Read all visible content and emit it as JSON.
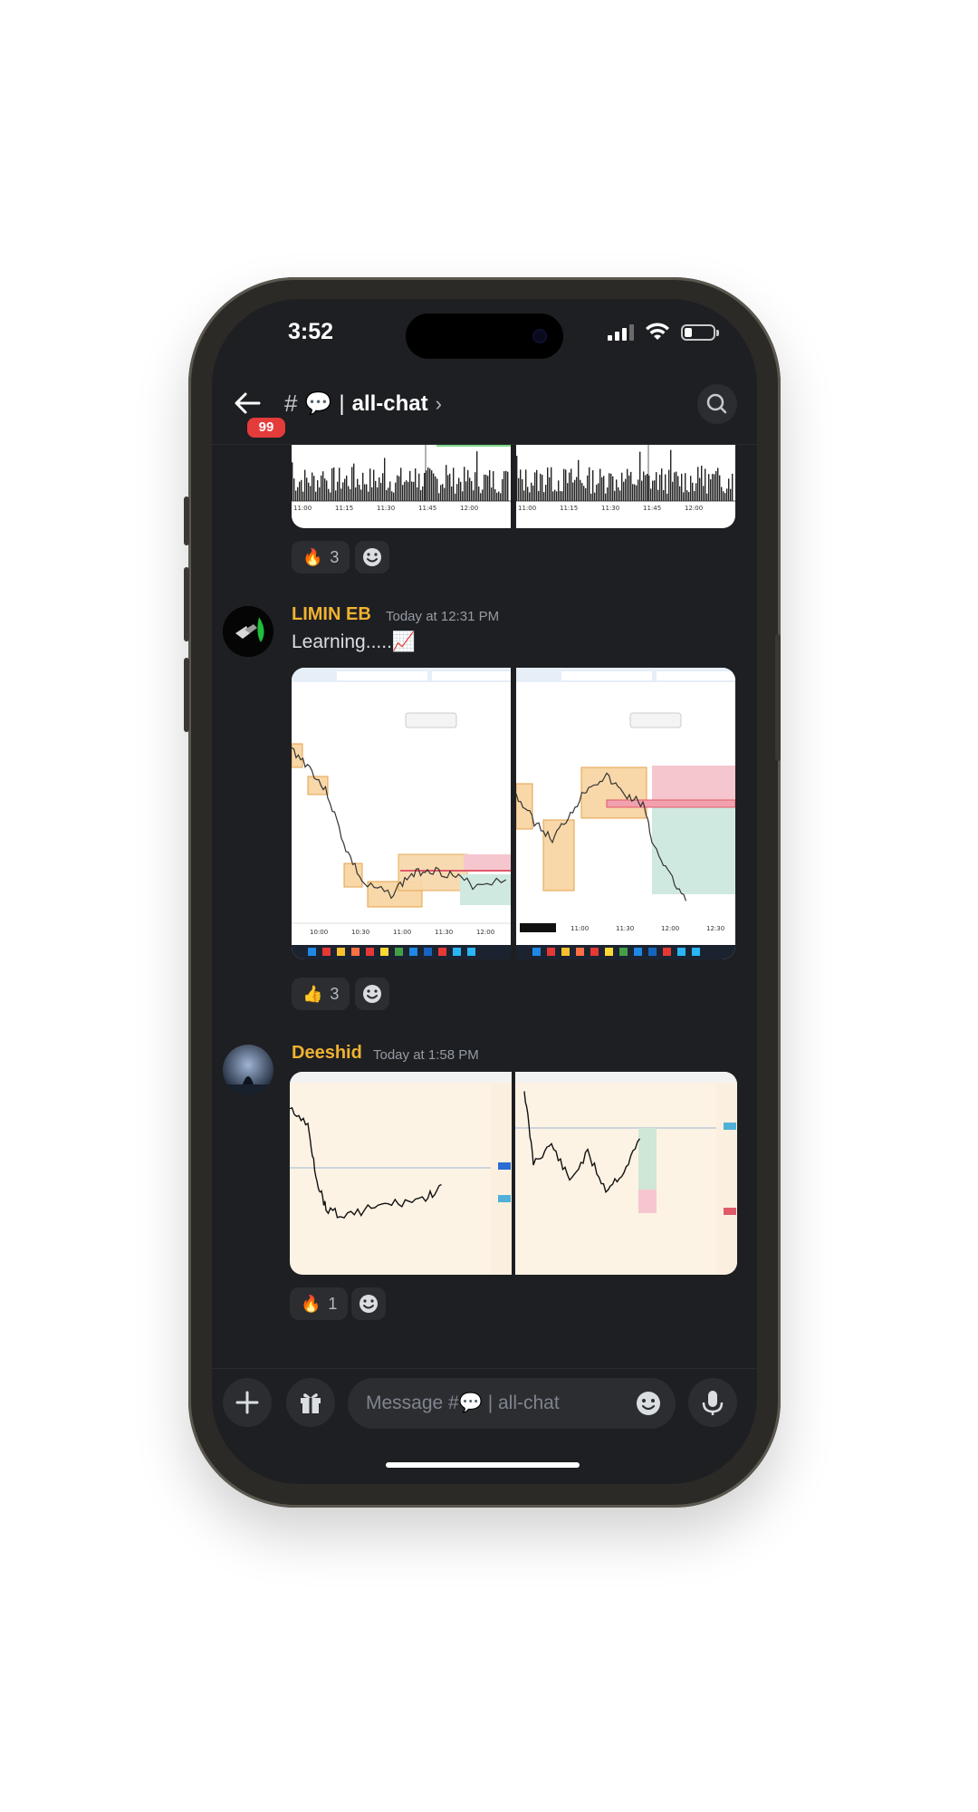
{
  "status_bar": {
    "time": "3:52"
  },
  "header": {
    "unread_badge": "99",
    "hash": "#",
    "channel_emoji": "💬",
    "separator": "|",
    "channel_name": "all-chat",
    "chevron": "›"
  },
  "messages": [
    {
      "reactions": [
        {
          "emoji": "🔥",
          "count": "3"
        }
      ]
    },
    {
      "username": "LIMIN EB",
      "timestamp": "Today at 12:31 PM",
      "text": "Learning.....📈",
      "reactions": [
        {
          "emoji": "👍",
          "count": "3"
        }
      ]
    },
    {
      "username": "Deeshid",
      "timestamp": "Today at 1:58 PM",
      "reactions": [
        {
          "emoji": "🔥",
          "count": "1"
        }
      ]
    }
  ],
  "chart_times": {
    "top_left": [
      "11:00",
      "11:15",
      "11:30",
      "11:45",
      "12:00"
    ],
    "top_right": [
      "11:00",
      "11:15",
      "11:30",
      "11:45",
      "12:00"
    ],
    "mid_left": [
      "10:00",
      "10:30",
      "11:00",
      "11:30",
      "12:00"
    ],
    "mid_right": [
      "11:00",
      "11:30",
      "12:00",
      "12:30"
    ]
  },
  "composer": {
    "placeholder": "Message #💬 | all-chat"
  },
  "colors": {
    "accent_username": "#f0b232",
    "background": "#1e1f22",
    "badge": "#e43b3b"
  },
  "icons": [
    "back-arrow-icon",
    "search-icon",
    "plus-icon",
    "gift-icon",
    "emoji-icon",
    "microphone-icon"
  ]
}
